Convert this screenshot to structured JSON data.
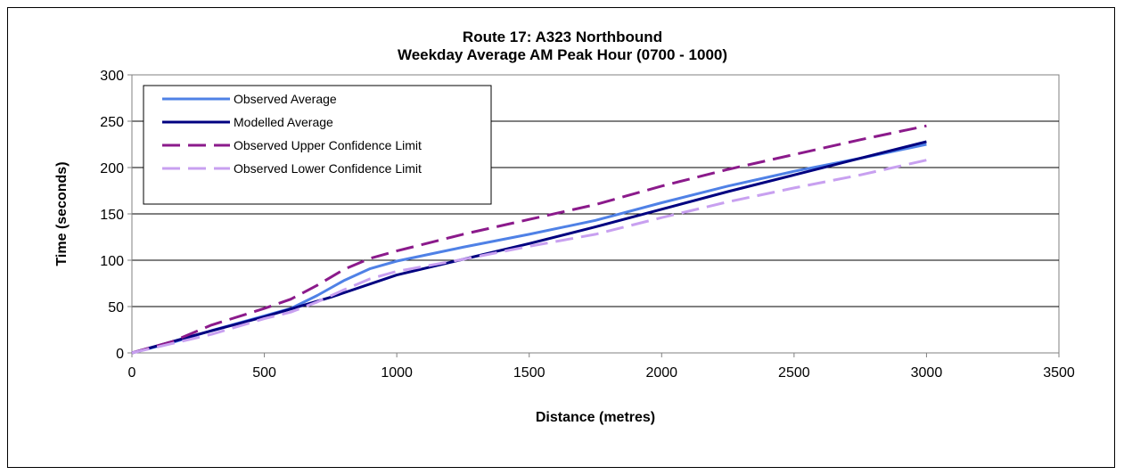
{
  "chart_data": {
    "type": "line",
    "title": "Route 17: A323 Northbound",
    "subtitle": "Weekday Average AM Peak Hour (0700 - 1000)",
    "xlabel": "Distance (metres)",
    "ylabel": "Time (seconds)",
    "xlim": [
      0,
      3500
    ],
    "ylim": [
      0,
      300
    ],
    "xticks": [
      0,
      500,
      1000,
      1500,
      2000,
      2500,
      3000,
      3500
    ],
    "yticks": [
      0,
      50,
      100,
      150,
      200,
      250,
      300
    ],
    "grid": "horizontal",
    "legend_position": "top-left",
    "series": [
      {
        "name": "Observed Average",
        "color": "#4f81e6",
        "dash": "solid",
        "points": [
          [
            0,
            0
          ],
          [
            150,
            11
          ],
          [
            300,
            24
          ],
          [
            500,
            40
          ],
          [
            600,
            48
          ],
          [
            700,
            62
          ],
          [
            800,
            78
          ],
          [
            900,
            91
          ],
          [
            1000,
            99
          ],
          [
            1250,
            114
          ],
          [
            1500,
            128
          ],
          [
            1750,
            143
          ],
          [
            2000,
            162
          ],
          [
            2250,
            180
          ],
          [
            2500,
            196
          ],
          [
            2750,
            210
          ],
          [
            3000,
            225
          ]
        ]
      },
      {
        "name": "Modelled Average",
        "color": "#000080",
        "dash": "solid",
        "points": [
          [
            0,
            0
          ],
          [
            250,
            20
          ],
          [
            500,
            39
          ],
          [
            750,
            60
          ],
          [
            1000,
            84
          ],
          [
            1250,
            101
          ],
          [
            1500,
            118
          ],
          [
            1750,
            136
          ],
          [
            2000,
            155
          ],
          [
            2250,
            174
          ],
          [
            2500,
            192
          ],
          [
            2750,
            210
          ],
          [
            3000,
            228
          ]
        ]
      },
      {
        "name": "Observed Upper Confidence Limit",
        "color": "#8b1a8b",
        "dash": "dashed",
        "points": [
          [
            0,
            0
          ],
          [
            150,
            12
          ],
          [
            300,
            30
          ],
          [
            500,
            48
          ],
          [
            600,
            58
          ],
          [
            700,
            73
          ],
          [
            800,
            90
          ],
          [
            900,
            102
          ],
          [
            1000,
            110
          ],
          [
            1250,
            128
          ],
          [
            1500,
            144
          ],
          [
            1750,
            160
          ],
          [
            2000,
            180
          ],
          [
            2250,
            198
          ],
          [
            2500,
            214
          ],
          [
            2750,
            230
          ],
          [
            3000,
            245
          ]
        ]
      },
      {
        "name": "Observed Lower Confidence Limit",
        "color": "#c8a0f0",
        "dash": "dashed",
        "points": [
          [
            0,
            0
          ],
          [
            150,
            10
          ],
          [
            300,
            20
          ],
          [
            500,
            37
          ],
          [
            600,
            44
          ],
          [
            700,
            55
          ],
          [
            800,
            68
          ],
          [
            900,
            80
          ],
          [
            1000,
            88
          ],
          [
            1250,
            101
          ],
          [
            1500,
            115
          ],
          [
            1750,
            128
          ],
          [
            2000,
            146
          ],
          [
            2250,
            163
          ],
          [
            2500,
            178
          ],
          [
            2750,
            192
          ],
          [
            3000,
            208
          ]
        ]
      }
    ]
  }
}
